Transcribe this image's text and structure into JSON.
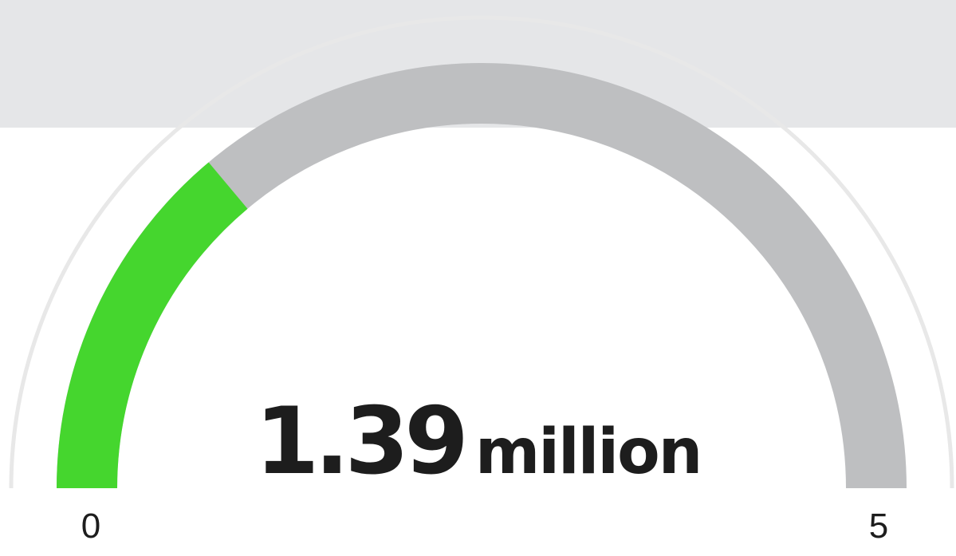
{
  "chart_data": {
    "type": "gauge",
    "value": 1.39,
    "value_display": "1.39",
    "unit_label": "million",
    "min": 0,
    "max": 5,
    "min_label": "0",
    "max_label": "5",
    "colors": {
      "fill": "#45d62e",
      "track": "#bebfc1",
      "outer_ring": "#e8e8e8",
      "band": "#e5e6e8",
      "text": "#1d1d1d"
    }
  }
}
